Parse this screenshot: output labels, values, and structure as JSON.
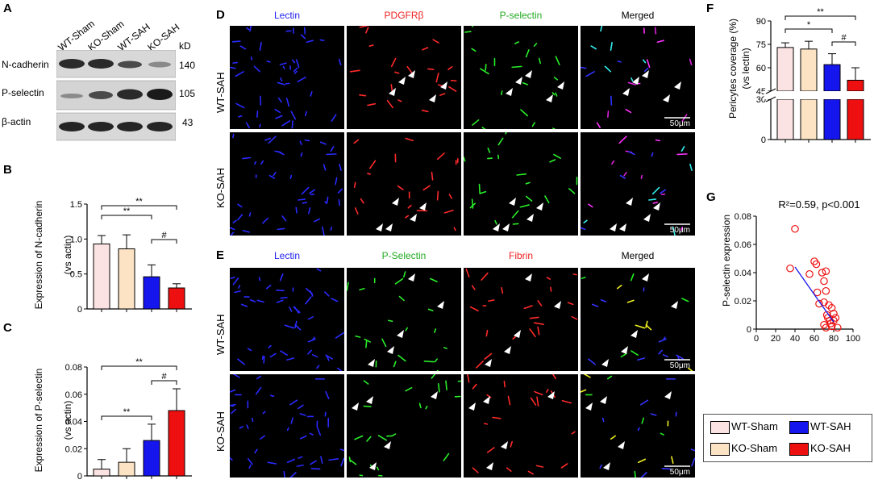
{
  "panel_labels": {
    "A": "A",
    "B": "B",
    "C": "C",
    "D": "D",
    "E": "E",
    "F": "F",
    "G": "G"
  },
  "panelA": {
    "lanes": [
      "WT-Sham",
      "KO-Sham",
      "WT-SAH",
      "KO-SAH"
    ],
    "kd_label": "kD",
    "proteins": [
      {
        "name": "N-cadherin",
        "kd": "140"
      },
      {
        "name": "P-selectin",
        "kd": "105"
      },
      {
        "name": "β-actin",
        "kd": "43"
      }
    ]
  },
  "panelD": {
    "channels": [
      {
        "label": "Lectin",
        "color": "#2222ee"
      },
      {
        "label": "PDGFRβ",
        "color": "#ee2222"
      },
      {
        "label": "P-selectin",
        "color": "#22aa22"
      },
      {
        "label": "Merged",
        "color": "#000000"
      }
    ],
    "rows": [
      "WT-SAH",
      "KO-SAH"
    ],
    "scale": "50μm"
  },
  "panelE": {
    "channels": [
      {
        "label": "Lectin",
        "color": "#2222ee"
      },
      {
        "label": "P-Selectin",
        "color": "#22aa22"
      },
      {
        "label": "Fibrin",
        "color": "#ee2222"
      },
      {
        "label": "Merged",
        "color": "#000000"
      }
    ],
    "rows": [
      "WT-SAH",
      "KO-SAH"
    ],
    "scale": "50μm"
  },
  "legend": [
    {
      "label": "WT-Sham",
      "color": "#fbe3e3"
    },
    {
      "label": "WT-SAH",
      "color": "#1515ee"
    },
    {
      "label": "KO-Sham",
      "color": "#fce3c4"
    },
    {
      "label": "KO-SAH",
      "color": "#ee1010"
    }
  ],
  "chart_data": [
    {
      "id": "B",
      "type": "bar",
      "categories": [
        "WT-Sham",
        "KO-Sham",
        "WT-SAH",
        "KO-SAH"
      ],
      "values": [
        0.93,
        0.86,
        0.46,
        0.3
      ],
      "errors": [
        0.12,
        0.2,
        0.17,
        0.06
      ],
      "colors": [
        "#fbe3e3",
        "#fce3c4",
        "#1515ee",
        "#ee1010"
      ],
      "ylabel": "Expression of N-cadherin",
      "ylabel2": "(vs actin)",
      "ylim": [
        0,
        1.5
      ],
      "yticks": [
        "0",
        "0.5",
        "1.0",
        "1.5"
      ],
      "brackets": [
        {
          "from": 0,
          "to": 3,
          "label": "**"
        },
        {
          "from": 0,
          "to": 2,
          "label": "**"
        },
        {
          "from": 2,
          "to": 3,
          "label": "#"
        }
      ]
    },
    {
      "id": "C",
      "type": "bar",
      "categories": [
        "WT-Sham",
        "KO-Sham",
        "WT-SAH",
        "KO-SAH"
      ],
      "values": [
        0.005,
        0.01,
        0.026,
        0.048
      ],
      "errors": [
        0.007,
        0.01,
        0.012,
        0.016
      ],
      "colors": [
        "#fbe3e3",
        "#fce3c4",
        "#1515ee",
        "#ee1010"
      ],
      "ylabel": "Expression of P-selectin",
      "ylabel2": "(vs actin)",
      "ylim": [
        0,
        0.08
      ],
      "yticks": [
        "0",
        "0.02",
        "0.04",
        "0.06",
        "0.08"
      ],
      "brackets": [
        {
          "from": 0,
          "to": 3,
          "label": "**"
        },
        {
          "from": 2,
          "to": 3,
          "label": "#"
        },
        {
          "from": 0,
          "to": 2,
          "label": "**"
        }
      ]
    },
    {
      "id": "F",
      "type": "bar",
      "categories": [
        "WT-Sham",
        "KO-Sham",
        "WT-SAH",
        "KO-SAH"
      ],
      "values": [
        73,
        72,
        62,
        52
      ],
      "errors": [
        3,
        5,
        7,
        8
      ],
      "colors": [
        "#fbe3e3",
        "#fce3c4",
        "#1515ee",
        "#ee1010"
      ],
      "ylabel": "Pericytes coverage (%)",
      "ylabel2": "(vs lectin)",
      "yticks_low": [
        "0",
        "30"
      ],
      "yticks_high": [
        "45",
        "60",
        "75",
        "90"
      ],
      "axis_break": [
        30,
        45
      ],
      "brackets": [
        {
          "from": 0,
          "to": 3,
          "label": "**"
        },
        {
          "from": 0,
          "to": 2,
          "label": "*"
        },
        {
          "from": 2,
          "to": 3,
          "label": "#"
        }
      ]
    },
    {
      "id": "G",
      "type": "scatter",
      "annotation": "R²=0.59, p<0.001",
      "xlabel": "Pericytes coverage (%)",
      "ylabel": "P-selectin expression",
      "xlim": [
        0,
        100
      ],
      "ylim": [
        0,
        0.08
      ],
      "xticks": [
        "0",
        "20",
        "40",
        "60",
        "80",
        "100"
      ],
      "yticks": [
        "0",
        "0.02",
        "0.04",
        "0.06",
        "0.08"
      ],
      "x": [
        40,
        35,
        55,
        60,
        62,
        68,
        72,
        70,
        63,
        72,
        65,
        75,
        78,
        70,
        73,
        80,
        74,
        76,
        82,
        70,
        72,
        77,
        78,
        84,
        80
      ],
      "y": [
        0.071,
        0.043,
        0.039,
        0.048,
        0.046,
        0.04,
        0.041,
        0.034,
        0.026,
        0.027,
        0.018,
        0.017,
        0.015,
        0.019,
        0.01,
        0.011,
        0.008,
        0.006,
        0.008,
        0.003,
        0.001,
        0.004,
        0.002,
        0.001,
        0.006
      ],
      "fit": {
        "x1": 40,
        "y1": 0.044,
        "x2": 80,
        "y2": 0.005
      }
    }
  ]
}
